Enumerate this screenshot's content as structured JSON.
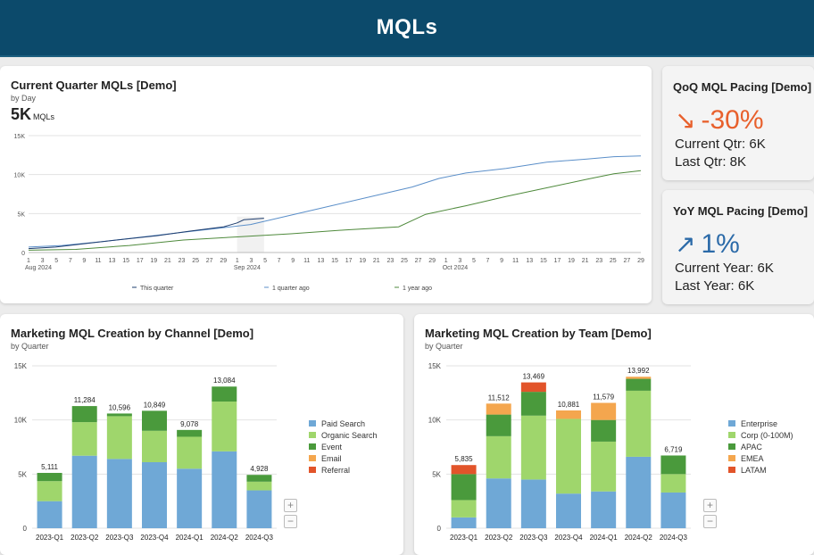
{
  "header": {
    "title": "MQLs"
  },
  "line_card": {
    "title": "Current Quarter MQLs [Demo]",
    "subtitle": "by Day",
    "kpi_value": "5K",
    "kpi_unit": "MQLs",
    "legend": [
      "This quarter",
      "1 quarter ago",
      "1 year ago"
    ],
    "x_ticks": [
      "1",
      "3",
      "5",
      "7",
      "9",
      "11",
      "13",
      "15",
      "17",
      "19",
      "21",
      "23",
      "25",
      "27",
      "29",
      "1",
      "3",
      "5",
      "7",
      "9",
      "11",
      "13",
      "15",
      "17",
      "19",
      "21",
      "23",
      "25",
      "27",
      "29",
      "1",
      "3",
      "5",
      "7",
      "9",
      "11",
      "13",
      "15",
      "17",
      "19",
      "21",
      "23",
      "25",
      "27",
      "29"
    ],
    "x_months": [
      "Aug 2024",
      "Sep 2024",
      "Oct 2024"
    ]
  },
  "qoq": {
    "title": "QoQ MQL Pacing [Demo]",
    "change": "-30%",
    "current": "Current Qtr: 6K",
    "last": "Last Qtr: 8K",
    "color": "#e8602c"
  },
  "yoy": {
    "title": "YoY MQL Pacing [Demo]",
    "change": "1%",
    "current": "Current Year: 6K",
    "last": "Last Year: 6K",
    "color": "#2b6aa8"
  },
  "channel_card": {
    "title": "Marketing MQL Creation by Channel [Demo]",
    "subtitle": "by Quarter"
  },
  "team_card": {
    "title": "Marketing MQL Creation by Team [Demo]",
    "subtitle": "by Quarter"
  },
  "chart_data": [
    {
      "type": "line",
      "title": "Current Quarter MQLs [Demo]",
      "ylim": [
        0,
        15000
      ],
      "y_ticks": [
        "0",
        "5K",
        "10K",
        "15K"
      ],
      "x_range_days": [
        1,
        92
      ],
      "series": [
        {
          "name": "This quarter",
          "color": "#1e3d6e",
          "x": [
            1,
            5,
            10,
            15,
            20,
            25,
            30,
            32,
            33,
            36
          ],
          "y": [
            500,
            700,
            1200,
            1700,
            2150,
            2750,
            3300,
            3800,
            4200,
            4400
          ]
        },
        {
          "name": "1 quarter ago",
          "color": "#5b8fc9",
          "x": [
            1,
            6,
            12,
            18,
            24,
            30,
            34,
            40,
            46,
            52,
            58,
            62,
            66,
            72,
            78,
            84,
            88,
            92
          ],
          "y": [
            700,
            900,
            1400,
            2000,
            2600,
            3200,
            3600,
            4800,
            6000,
            7200,
            8400,
            9500,
            10200,
            10800,
            11600,
            12000,
            12300,
            12400
          ]
        },
        {
          "name": "1 year ago",
          "color": "#4f8a3c",
          "x": [
            1,
            8,
            16,
            24,
            32,
            40,
            48,
            56,
            60,
            66,
            72,
            78,
            84,
            88,
            92
          ],
          "y": [
            300,
            400,
            900,
            1600,
            2000,
            2400,
            2900,
            3300,
            4900,
            6000,
            7200,
            8300,
            9400,
            10100,
            10500
          ]
        }
      ]
    },
    {
      "type": "bar",
      "title": "Marketing MQL Creation by Channel [Demo]",
      "stacked": true,
      "categories": [
        "2023-Q1",
        "2023-Q2",
        "2023-Q3",
        "2023-Q4",
        "2024-Q1",
        "2024-Q2",
        "2024-Q3"
      ],
      "totals": [
        "5,111",
        "11,284",
        "10,596",
        "10,849",
        "9,078",
        "13,084",
        "4,928"
      ],
      "ylim": [
        0,
        15000
      ],
      "y_ticks": [
        "0",
        "5K",
        "10K",
        "15K"
      ],
      "series": [
        {
          "name": "Paid Search",
          "color": "#6fa8d6",
          "values": [
            2500,
            6700,
            6400,
            6100,
            5500,
            7100,
            3500
          ]
        },
        {
          "name": "Organic Search",
          "color": "#9fd66c",
          "values": [
            1850,
            3100,
            3950,
            2900,
            2950,
            4600,
            800
          ]
        },
        {
          "name": "Event",
          "color": "#4a9a3c",
          "values": [
            761,
            1484,
            246,
            1849,
            628,
            1384,
            628
          ]
        },
        {
          "name": "Email",
          "color": "#f4a64e",
          "values": [
            0,
            0,
            0,
            0,
            0,
            0,
            0
          ]
        },
        {
          "name": "Referral",
          "color": "#e2542a",
          "values": [
            0,
            0,
            0,
            0,
            0,
            0,
            0
          ]
        }
      ]
    },
    {
      "type": "bar",
      "title": "Marketing MQL Creation by Team [Demo]",
      "stacked": true,
      "categories": [
        "2023-Q1",
        "2023-Q2",
        "2023-Q3",
        "2023-Q4",
        "2024-Q1",
        "2024-Q2",
        "2024-Q3"
      ],
      "totals": [
        "5,835",
        "11,512",
        "13,469",
        "10,881",
        "11,579",
        "13,992",
        "6,719"
      ],
      "ylim": [
        0,
        15000
      ],
      "y_ticks": [
        "0",
        "5K",
        "10K",
        "15K"
      ],
      "series": [
        {
          "name": "Enterprise",
          "color": "#6fa8d6",
          "values": [
            1000,
            4600,
            4500,
            3200,
            3400,
            6600,
            3300
          ]
        },
        {
          "name": "Corp (0-100M)",
          "color": "#9fd66c",
          "values": [
            1600,
            3900,
            5900,
            6900,
            4600,
            6100,
            1700
          ]
        },
        {
          "name": "APAC",
          "color": "#4a9a3c",
          "values": [
            2400,
            2000,
            2200,
            0,
            2000,
            1100,
            1719
          ]
        },
        {
          "name": "EMEA",
          "color": "#f4a64e",
          "values": [
            0,
            1012,
            0,
            781,
            1579,
            192,
            0
          ]
        },
        {
          "name": "LATAM",
          "color": "#e2542a",
          "values": [
            835,
            0,
            869,
            0,
            0,
            0,
            0
          ]
        }
      ]
    }
  ]
}
